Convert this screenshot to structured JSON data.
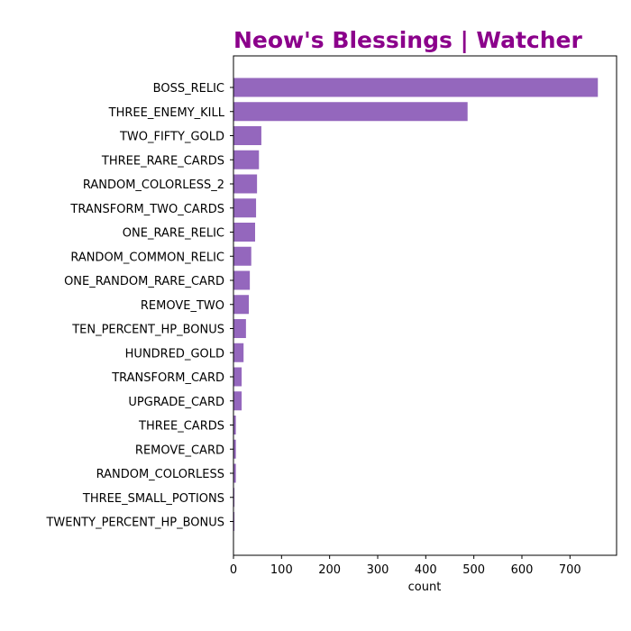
{
  "chart_data": {
    "type": "bar",
    "orientation": "horizontal",
    "title": "Neow's Blessings | Watcher",
    "xlabel": "count",
    "ylabel": "",
    "xlim": [
      0,
      800
    ],
    "xticks": [
      0,
      100,
      200,
      300,
      400,
      500,
      600,
      700
    ],
    "grid": false,
    "colors": {
      "bar": "#9467bd",
      "title": "#8b008b"
    },
    "categories": [
      "BOSS_RELIC",
      "THREE_ENEMY_KILL",
      "TWO_FIFTY_GOLD",
      "THREE_RARE_CARDS",
      "RANDOM_COLORLESS_2",
      "TRANSFORM_TWO_CARDS",
      "ONE_RARE_RELIC",
      "RANDOM_COMMON_RELIC",
      "ONE_RANDOM_RARE_CARD",
      "REMOVE_TWO",
      "TEN_PERCENT_HP_BONUS",
      "HUNDRED_GOLD",
      "TRANSFORM_CARD",
      "UPGRADE_CARD",
      "THREE_CARDS",
      "REMOVE_CARD",
      "RANDOM_COLORLESS",
      "THREE_SMALL_POTIONS",
      "TWENTY_PERCENT_HP_BONUS"
    ],
    "values": [
      758,
      487,
      58,
      53,
      49,
      47,
      45,
      37,
      34,
      32,
      26,
      21,
      17,
      17,
      5,
      5,
      5,
      2,
      2
    ]
  }
}
